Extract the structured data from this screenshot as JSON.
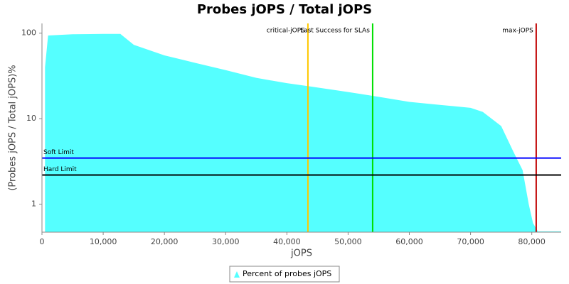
{
  "chart_data": {
    "type": "area",
    "title": "Probes jOPS / Total jOPS",
    "x_label": "jOPS",
    "y_label": "(Probes jOPS / Total jOPS)%",
    "log_y": true,
    "xlim": [
      0,
      84800
    ],
    "ylim": [
      0.47,
      130
    ],
    "xticks": [
      0,
      {
        "value": 10000,
        "label": "10,000"
      },
      {
        "value": 20000,
        "label": "20,000"
      },
      {
        "value": 30000,
        "label": "30,000"
      },
      {
        "value": 40000,
        "label": "40,000"
      },
      {
        "value": 50000,
        "label": "50,000"
      },
      {
        "value": 60000,
        "label": "60,000"
      },
      {
        "value": 70000,
        "label": "70,000"
      },
      {
        "value": 80000,
        "label": "80,000"
      }
    ],
    "yticks": [
      1,
      10,
      100
    ],
    "series": [
      {
        "name": "Percent of probes jOPS",
        "color": "#55ffff",
        "x": [
          500,
          1000,
          5000,
          10000,
          12800,
          15000,
          20000,
          25000,
          30000,
          35000,
          40000,
          43500,
          50000,
          55000,
          60000,
          65000,
          70000,
          72000,
          75000,
          77000,
          78500,
          79500,
          80200,
          81000,
          84800
        ],
        "values": [
          40,
          94,
          97,
          98,
          98,
          73,
          55,
          45,
          37,
          30,
          26,
          24,
          20.5,
          18,
          15.7,
          14.5,
          13.4,
          12,
          8.2,
          4.1,
          2.5,
          1.0,
          0.6,
          0.48,
          0.48
        ]
      }
    ],
    "vertical_markers": [
      {
        "name": "critical-jOPS",
        "value": 43437,
        "color": "#ffc800"
      },
      {
        "name": "Last Success for SLAs",
        "value": 54007,
        "color": "#00e000"
      },
      {
        "name": "max-jOPS",
        "value": 80720,
        "color": "#c00000"
      }
    ],
    "horizontal_markers": [
      {
        "name": "Soft Limit",
        "value": 3.46,
        "color": "#0000ff"
      },
      {
        "name": "Hard Limit",
        "value": 2.19,
        "color": "#000000"
      }
    ]
  }
}
